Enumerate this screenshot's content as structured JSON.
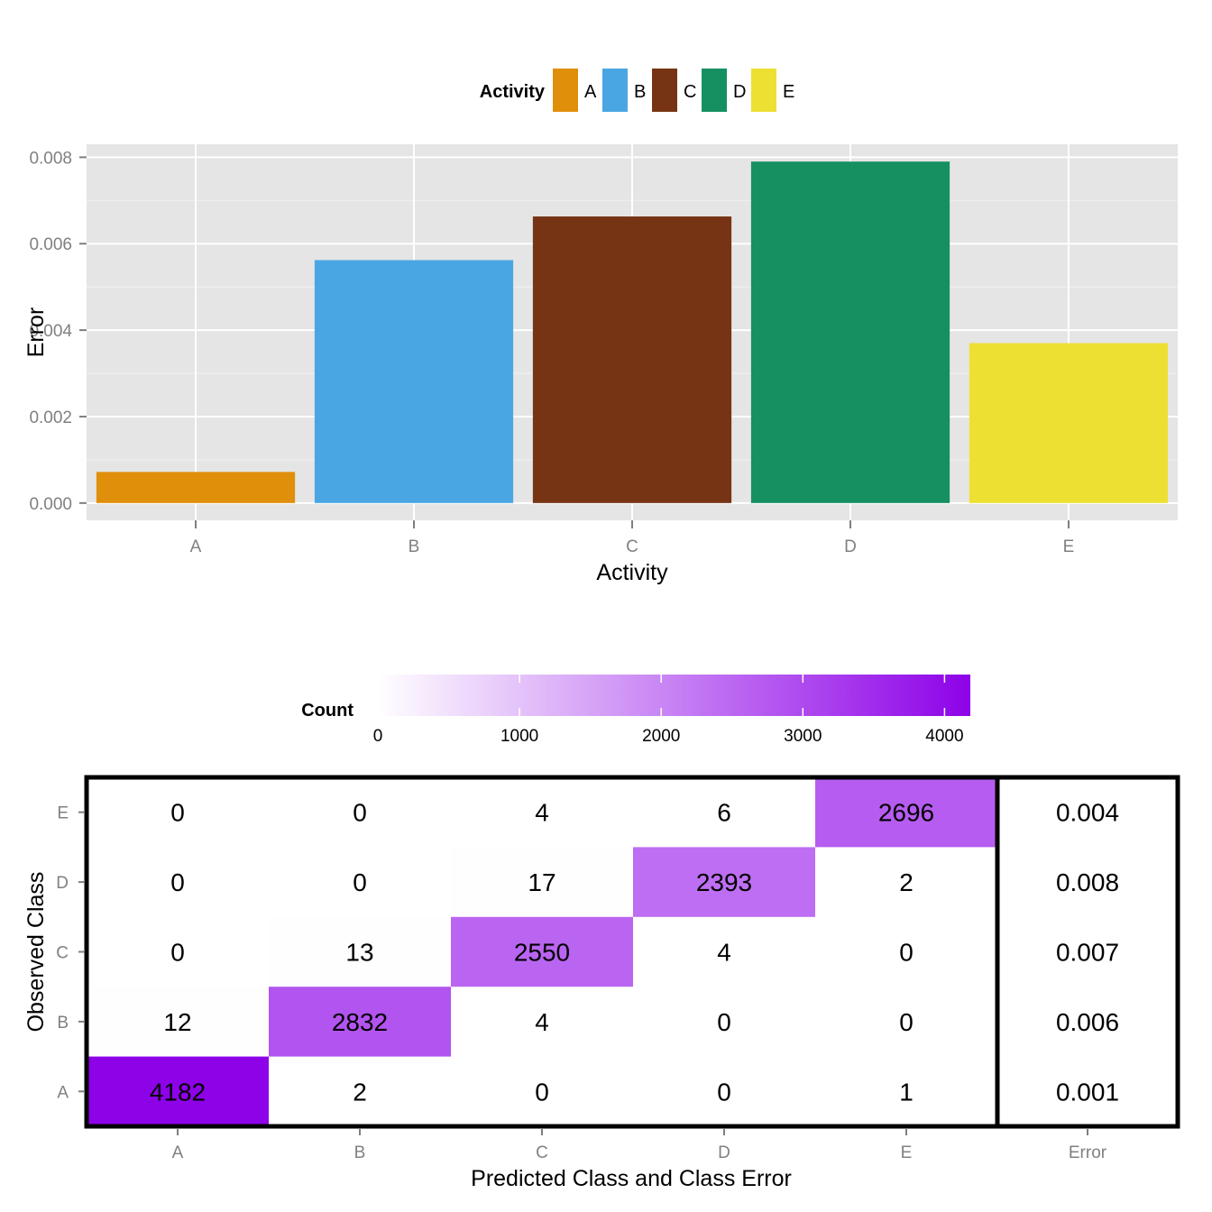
{
  "chart_data": [
    {
      "type": "bar",
      "xlabel": "Activity",
      "ylabel": "Error",
      "categories": [
        "A",
        "B",
        "C",
        "D",
        "E"
      ],
      "values": [
        0.00072,
        0.00562,
        0.00663,
        0.0079,
        0.0037
      ],
      "colors": [
        "#E08F0B",
        "#4AA6E3",
        "#773414",
        "#168F61",
        "#EDE033"
      ],
      "ylim": [
        -0.0004,
        0.0083
      ],
      "y_ticks": [
        0,
        0.002,
        0.004,
        0.006,
        0.008
      ],
      "y_tick_labels": [
        "0.000",
        "0.002",
        "0.004",
        "0.006",
        "0.008"
      ],
      "grid": true,
      "legend": {
        "title": "Activity",
        "position": "top",
        "entries": [
          "A",
          "B",
          "C",
          "D",
          "E"
        ]
      }
    },
    {
      "type": "heatmap",
      "xlabel": "Predicted Class and Class Error",
      "ylabel": "Observed Class",
      "x_categories": [
        "A",
        "B",
        "C",
        "D",
        "E"
      ],
      "y_categories": [
        "E",
        "D",
        "C",
        "B",
        "A"
      ],
      "matrix": [
        [
          0,
          0,
          4,
          6,
          2696
        ],
        [
          0,
          0,
          17,
          2393,
          2
        ],
        [
          0,
          13,
          2550,
          4,
          0
        ],
        [
          12,
          2832,
          4,
          0,
          0
        ],
        [
          4182,
          2,
          0,
          0,
          1
        ]
      ],
      "error_column_label": "Error",
      "class_error": [
        "0.004",
        "0.008",
        "0.007",
        "0.006",
        "0.001"
      ],
      "colorscale": {
        "title": "Count",
        "low": "#FFFFFF",
        "high": "#8E02E8",
        "range": [
          0,
          4182
        ],
        "ticks": [
          0,
          1000,
          2000,
          3000,
          4000
        ],
        "tick_labels": [
          "0",
          "1000",
          "2000",
          "3000",
          "4000"
        ],
        "position": "top"
      }
    }
  ]
}
